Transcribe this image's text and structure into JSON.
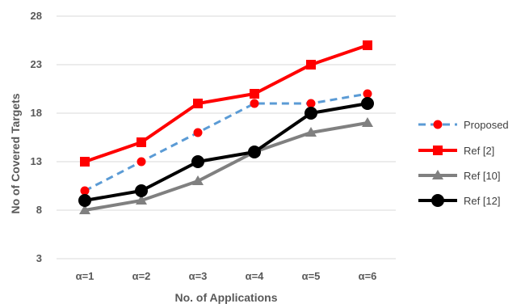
{
  "chart_data": {
    "type": "line",
    "title": "",
    "xlabel": "No. of Applications",
    "ylabel": "No of Covered Targets",
    "categories": [
      "α=1",
      "α=2",
      "α=3",
      "α=4",
      "α=5",
      "α=6"
    ],
    "ylim": [
      3,
      28
    ],
    "yticks": [
      3,
      8,
      13,
      18,
      23,
      28
    ],
    "grid": true,
    "legend_position": "right",
    "series": [
      {
        "name": "Proposed",
        "values": [
          10,
          13,
          16,
          19,
          19,
          20
        ],
        "color": "#5B9BD5",
        "line_style": "dashed",
        "marker": "circle-red"
      },
      {
        "name": "Ref [2]",
        "values": [
          13,
          15,
          19,
          20,
          23,
          25
        ],
        "color": "#FF0000",
        "line_style": "solid",
        "marker": "square"
      },
      {
        "name": "Ref [10]",
        "values": [
          8,
          9,
          11,
          14,
          16,
          17
        ],
        "color": "#808080",
        "line_style": "solid",
        "marker": "triangle"
      },
      {
        "name": "Ref [12]",
        "values": [
          9,
          10,
          13,
          14,
          18,
          19
        ],
        "color": "#000000",
        "line_style": "solid",
        "marker": "circle"
      }
    ]
  }
}
